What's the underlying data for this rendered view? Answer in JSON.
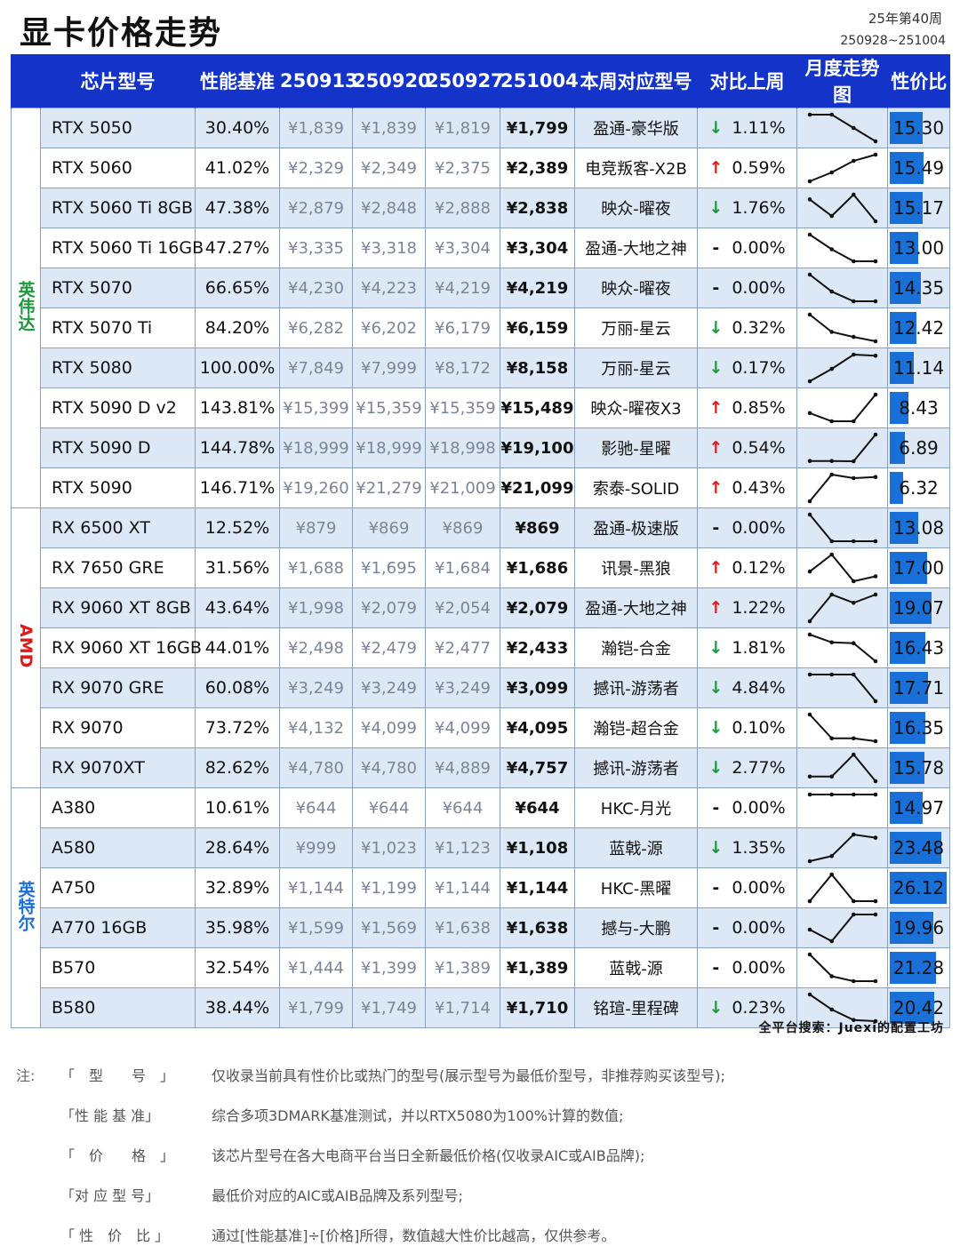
{
  "header": {
    "title": "显卡价格走势",
    "week": "25年第40周",
    "date_range": "250928~251004"
  },
  "columns": [
    "芯片型号",
    "性能基准",
    "250913",
    "250920",
    "250927",
    "251004",
    "本周对应型号",
    "对比上周",
    "月度走势图",
    "性价比"
  ],
  "groups": [
    {
      "name": "英伟达",
      "color": "#1a9a3a",
      "start": 0,
      "count": 10
    },
    {
      "name": "AMD",
      "color": "#e01919",
      "start": 10,
      "count": 7
    },
    {
      "name": "英特尔",
      "color": "#1a6fd8",
      "start": 17,
      "count": 6
    }
  ],
  "rows": [
    {
      "model": "RTX 5050",
      "perf": "30.40%",
      "p1": "¥1,839",
      "p2": "¥1,839",
      "p3": "¥1,819",
      "cur": "¥1,799",
      "brand": "盈通-豪华版",
      "dir": "down",
      "change": "1.11%",
      "ratio": "15.30",
      "ratio_value": 15.3,
      "trend": [
        1839,
        1839,
        1819,
        1799
      ]
    },
    {
      "model": "RTX 5060",
      "perf": "41.02%",
      "p1": "¥2,329",
      "p2": "¥2,349",
      "p3": "¥2,375",
      "cur": "¥2,389",
      "brand": "电竞叛客-X2B",
      "dir": "up",
      "change": "0.59%",
      "ratio": "15.49",
      "ratio_value": 15.49,
      "trend": [
        2329,
        2349,
        2375,
        2389
      ]
    },
    {
      "model": "RTX 5060 Ti 8GB",
      "perf": "47.38%",
      "p1": "¥2,879",
      "p2": "¥2,848",
      "p3": "¥2,888",
      "cur": "¥2,838",
      "brand": "映众-曜夜",
      "dir": "down",
      "change": "1.76%",
      "ratio": "15.17",
      "ratio_value": 15.17,
      "trend": [
        2879,
        2848,
        2888,
        2838
      ]
    },
    {
      "model": "RTX 5060 Ti 16GB",
      "perf": "47.27%",
      "p1": "¥3,335",
      "p2": "¥3,318",
      "p3": "¥3,304",
      "cur": "¥3,304",
      "brand": "盈通-大地之神",
      "dir": "flat",
      "change": "0.00%",
      "ratio": "13.00",
      "ratio_value": 13.0,
      "trend": [
        3335,
        3318,
        3304,
        3304
      ]
    },
    {
      "model": "RTX 5070",
      "perf": "66.65%",
      "p1": "¥4,230",
      "p2": "¥4,223",
      "p3": "¥4,219",
      "cur": "¥4,219",
      "brand": "映众-曜夜",
      "dir": "flat",
      "change": "0.00%",
      "ratio": "14.35",
      "ratio_value": 14.35,
      "trend": [
        4230,
        4223,
        4219,
        4219
      ]
    },
    {
      "model": "RTX 5070 Ti",
      "perf": "84.20%",
      "p1": "¥6,282",
      "p2": "¥6,202",
      "p3": "¥6,179",
      "cur": "¥6,159",
      "brand": "万丽-星云",
      "dir": "down",
      "change": "0.32%",
      "ratio": "12.42",
      "ratio_value": 12.42,
      "trend": [
        6282,
        6202,
        6179,
        6159
      ]
    },
    {
      "model": "RTX 5080",
      "perf": "100.00%",
      "p1": "¥7,849",
      "p2": "¥7,999",
      "p3": "¥8,172",
      "cur": "¥8,158",
      "brand": "万丽-星云",
      "dir": "down",
      "change": "0.17%",
      "ratio": "11.14",
      "ratio_value": 11.14,
      "trend": [
        7849,
        7999,
        8172,
        8158
      ]
    },
    {
      "model": "RTX 5090 D v2",
      "perf": "143.81%",
      "p1": "¥15,399",
      "p2": "¥15,359",
      "p3": "¥15,359",
      "cur": "¥15,489",
      "brand": "映众-曜夜X3",
      "dir": "up",
      "change": "0.85%",
      "ratio": "8.43",
      "ratio_value": 8.43,
      "trend": [
        15399,
        15359,
        15359,
        15489
      ]
    },
    {
      "model": "RTX 5090 D",
      "perf": "144.78%",
      "p1": "¥18,999",
      "p2": "¥18,999",
      "p3": "¥18,998",
      "cur": "¥19,100",
      "brand": "影驰-星曜",
      "dir": "up",
      "change": "0.54%",
      "ratio": "6.89",
      "ratio_value": 6.89,
      "trend": [
        18999,
        18999,
        18998,
        19100
      ]
    },
    {
      "model": "RTX 5090",
      "perf": "146.71%",
      "p1": "¥19,260",
      "p2": "¥21,279",
      "p3": "¥21,009",
      "cur": "¥21,099",
      "brand": "索泰-SOLID",
      "dir": "up",
      "change": "0.43%",
      "ratio": "6.32",
      "ratio_value": 6.32,
      "trend": [
        19260,
        21279,
        21009,
        21099
      ]
    },
    {
      "model": "RX 6500 XT",
      "perf": "12.52%",
      "p1": "¥879",
      "p2": "¥869",
      "p3": "¥869",
      "cur": "¥869",
      "brand": "盈通-极速版",
      "dir": "flat",
      "change": "0.00%",
      "ratio": "13.08",
      "ratio_value": 13.08,
      "trend": [
        879,
        869,
        869,
        869
      ]
    },
    {
      "model": "RX 7650 GRE",
      "perf": "31.56%",
      "p1": "¥1,688",
      "p2": "¥1,695",
      "p3": "¥1,684",
      "cur": "¥1,686",
      "brand": "讯景-黑狼",
      "dir": "up",
      "change": "0.12%",
      "ratio": "17.00",
      "ratio_value": 17.0,
      "trend": [
        1688,
        1695,
        1684,
        1686
      ]
    },
    {
      "model": "RX 9060 XT 8GB",
      "perf": "43.64%",
      "p1": "¥1,998",
      "p2": "¥2,079",
      "p3": "¥2,054",
      "cur": "¥2,079",
      "brand": "盈通-大地之神",
      "dir": "up",
      "change": "1.22%",
      "ratio": "19.07",
      "ratio_value": 19.07,
      "trend": [
        1998,
        2079,
        2054,
        2079
      ]
    },
    {
      "model": "RX 9060 XT 16GB",
      "perf": "44.01%",
      "p1": "¥2,498",
      "p2": "¥2,479",
      "p3": "¥2,477",
      "cur": "¥2,433",
      "brand": "瀚铠-合金",
      "dir": "down",
      "change": "1.81%",
      "ratio": "16.43",
      "ratio_value": 16.43,
      "trend": [
        2498,
        2479,
        2477,
        2433
      ]
    },
    {
      "model": "RX 9070 GRE",
      "perf": "60.08%",
      "p1": "¥3,249",
      "p2": "¥3,249",
      "p3": "¥3,249",
      "cur": "¥3,099",
      "brand": "撼讯-游荡者",
      "dir": "down",
      "change": "4.84%",
      "ratio": "17.71",
      "ratio_value": 17.71,
      "trend": [
        3249,
        3249,
        3249,
        3099
      ]
    },
    {
      "model": "RX 9070",
      "perf": "73.72%",
      "p1": "¥4,132",
      "p2": "¥4,099",
      "p3": "¥4,099",
      "cur": "¥4,095",
      "brand": "瀚铠-超合金",
      "dir": "down",
      "change": "0.10%",
      "ratio": "16.35",
      "ratio_value": 16.35,
      "trend": [
        4132,
        4099,
        4099,
        4095
      ]
    },
    {
      "model": "RX 9070XT",
      "perf": "82.62%",
      "p1": "¥4,780",
      "p2": "¥4,780",
      "p3": "¥4,889",
      "cur": "¥4,757",
      "brand": "撼讯-游荡者",
      "dir": "down",
      "change": "2.77%",
      "ratio": "15.78",
      "ratio_value": 15.78,
      "trend": [
        4780,
        4780,
        4889,
        4757
      ]
    },
    {
      "model": "A380",
      "perf": "10.61%",
      "p1": "¥644",
      "p2": "¥644",
      "p3": "¥644",
      "cur": "¥644",
      "brand": "HKC-月光",
      "dir": "flat",
      "change": "0.00%",
      "ratio": "14.97",
      "ratio_value": 14.97,
      "trend": [
        644,
        644,
        644,
        644
      ]
    },
    {
      "model": "A580",
      "perf": "28.64%",
      "p1": "¥999",
      "p2": "¥1,023",
      "p3": "¥1,123",
      "cur": "¥1,108",
      "brand": "蓝戟-源",
      "dir": "down",
      "change": "1.35%",
      "ratio": "23.48",
      "ratio_value": 23.48,
      "trend": [
        999,
        1023,
        1123,
        1108
      ]
    },
    {
      "model": "A750",
      "perf": "32.89%",
      "p1": "¥1,144",
      "p2": "¥1,199",
      "p3": "¥1,144",
      "cur": "¥1,144",
      "brand": "HKC-黑曜",
      "dir": "flat",
      "change": "0.00%",
      "ratio": "26.12",
      "ratio_value": 26.12,
      "trend": [
        1144,
        1199,
        1144,
        1144
      ]
    },
    {
      "model": "A770 16GB",
      "perf": "35.98%",
      "p1": "¥1,599",
      "p2": "¥1,569",
      "p3": "¥1,638",
      "cur": "¥1,638",
      "brand": "撼与-大鹏",
      "dir": "flat",
      "change": "0.00%",
      "ratio": "19.96",
      "ratio_value": 19.96,
      "trend": [
        1599,
        1569,
        1638,
        1638
      ]
    },
    {
      "model": "B570",
      "perf": "32.54%",
      "p1": "¥1,444",
      "p2": "¥1,399",
      "p3": "¥1,389",
      "cur": "¥1,389",
      "brand": "蓝戟-源",
      "dir": "flat",
      "change": "0.00%",
      "ratio": "21.28",
      "ratio_value": 21.28,
      "trend": [
        1444,
        1399,
        1389,
        1389
      ]
    },
    {
      "model": "B580",
      "perf": "38.44%",
      "p1": "¥1,799",
      "p2": "¥1,749",
      "p3": "¥1,714",
      "cur": "¥1,710",
      "brand": "铭瑄-里程碑",
      "dir": "down",
      "change": "0.23%",
      "ratio": "20.42",
      "ratio_value": 20.42,
      "trend": [
        1799,
        1749,
        1714,
        1710
      ]
    }
  ],
  "arrows": {
    "up": "↑",
    "down": "↓",
    "flat": "-"
  },
  "ratio_max": 26.12,
  "footer": "全平台搜索：Juexi的配置工坊",
  "notes": {
    "prefix": "注:",
    "items": [
      {
        "key": "「　型　　号　」",
        "text": "仅收录当前具有性价比或热门的型号(展示型号为最低价型号，非推荐购买该型号);"
      },
      {
        "key": "「性 能 基 准」",
        "text": "综合多项3DMARK基准测试，并以RTX5080为100%计算的数值;"
      },
      {
        "key": "「　价　　格　」",
        "text": "该芯片型号在各大电商平台当日全新最低价格(仅收录AIC或AIB品牌);"
      },
      {
        "key": "「对 应 型 号」",
        "text": "最低价对应的AIC或AIB品牌及系列型号;"
      },
      {
        "key": "「 性　价　比 」",
        "text": "通过[性能基准]÷[价格]所得，数值越大性价比越高，仅供参考。"
      }
    ]
  }
}
